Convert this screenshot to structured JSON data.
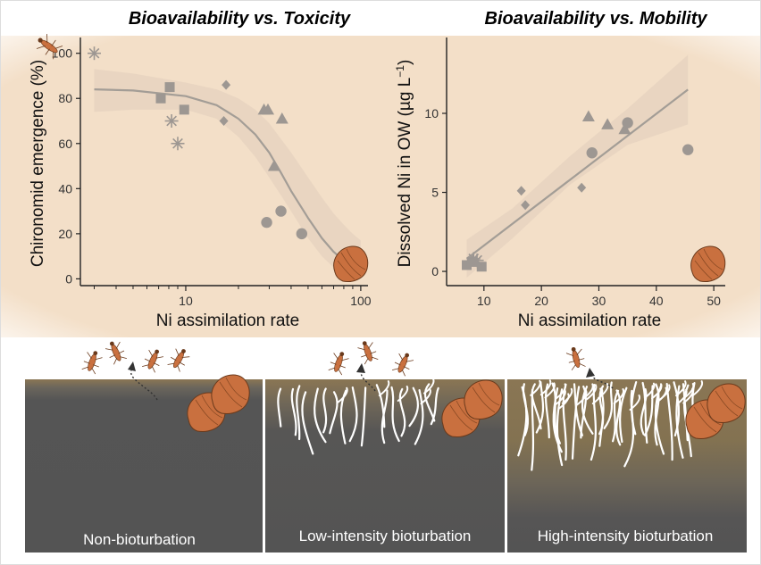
{
  "colors": {
    "panel_bg": "#f3dfc8",
    "marker": "#9d9792",
    "fit_line": "#a39d96",
    "ribbon": "#e6d3bf",
    "sediment_dark": "#545454",
    "water_brown": "#8a7654",
    "burrow": "#ffffff",
    "clam": "#c9703f",
    "insect": "#c9703f"
  },
  "chart_data": [
    {
      "type": "scatter",
      "title": "Bioavailability vs. Toxicity",
      "xlabel": "Ni assimilation rate",
      "ylabel": "Chironomid emergence (%)",
      "x_scale": "log",
      "xlim": [
        2.5,
        110
      ],
      "ylim": [
        -3,
        107
      ],
      "x_ticks": [
        10,
        100
      ],
      "y_ticks": [
        0,
        20,
        40,
        60,
        80,
        100
      ],
      "grid": false,
      "fit": "logistic decreasing with confidence band",
      "series": [
        {
          "shape": "asterisk",
          "points": [
            [
              3.0,
              100
            ],
            [
              8.3,
              70
            ],
            [
              9.0,
              60
            ]
          ]
        },
        {
          "shape": "square",
          "points": [
            [
              7.2,
              80
            ],
            [
              8.1,
              85
            ],
            [
              9.8,
              75
            ]
          ]
        },
        {
          "shape": "diamond",
          "points": [
            [
              16.5,
              70
            ],
            [
              17.0,
              86
            ]
          ]
        },
        {
          "shape": "triangle",
          "points": [
            [
              28.0,
              75
            ],
            [
              29.5,
              75
            ],
            [
              32.0,
              50
            ],
            [
              35.5,
              71
            ]
          ]
        },
        {
          "shape": "circle",
          "points": [
            [
              29.0,
              25
            ],
            [
              35.0,
              30
            ],
            [
              46.0,
              20
            ]
          ]
        }
      ],
      "fit_curve": {
        "x": [
          3.0,
          5.0,
          10,
          15,
          20,
          25,
          30,
          35,
          40,
          50,
          60,
          70,
          80,
          90,
          100
        ],
        "y": [
          84,
          83.5,
          81,
          77,
          71,
          64,
          56,
          47,
          39,
          27,
          18,
          12,
          8,
          5,
          3
        ]
      },
      "band_upper": {
        "x": [
          3.0,
          5.0,
          10,
          15,
          20,
          25,
          30,
          35,
          40,
          50,
          60,
          70,
          80,
          90,
          100
        ],
        "y": [
          93,
          91,
          87,
          84,
          80,
          75,
          69,
          62,
          56,
          45,
          36,
          29,
          24,
          20,
          17
        ]
      },
      "band_lower": {
        "x": [
          3.0,
          5.0,
          10,
          15,
          20,
          25,
          30,
          35,
          40,
          50,
          60,
          70,
          80,
          90,
          100
        ],
        "y": [
          74,
          75,
          75,
          71,
          63,
          54,
          45,
          37,
          30,
          18,
          10,
          5,
          2,
          0,
          0
        ]
      }
    },
    {
      "type": "scatter",
      "title": "Bioavailability vs. Mobility",
      "xlabel": "Ni assimilation rate",
      "ylabel": "Dissolved Ni in OW",
      "ylabel_unit": "(µg L",
      "ylabel_superscript": "−1",
      "ylabel_close": ")",
      "xlim": [
        3.5,
        52
      ],
      "ylim": [
        -0.9,
        14.8
      ],
      "x_ticks": [
        10,
        20,
        30,
        40,
        50
      ],
      "y_ticks": [
        0,
        5,
        10
      ],
      "grid": false,
      "fit": "linear with confidence band",
      "series": [
        {
          "shape": "square",
          "points": [
            [
              7.0,
              0.4
            ],
            [
              7.9,
              0.6
            ],
            [
              9.6,
              0.3
            ]
          ]
        },
        {
          "shape": "asterisk",
          "points": [
            [
              8.2,
              0.8
            ],
            [
              8.8,
              0.7
            ]
          ]
        },
        {
          "shape": "diamond",
          "points": [
            [
              16.5,
              5.1
            ],
            [
              17.2,
              4.2
            ],
            [
              27.0,
              5.3
            ]
          ]
        },
        {
          "shape": "triangle",
          "points": [
            [
              28.2,
              9.8
            ],
            [
              31.5,
              9.3
            ],
            [
              34.5,
              9.0
            ]
          ]
        },
        {
          "shape": "circle",
          "points": [
            [
              28.8,
              7.5
            ],
            [
              35.0,
              9.4
            ],
            [
              45.5,
              7.7
            ]
          ]
        }
      ],
      "fit_line": {
        "x": [
          7.0,
          45.5
        ],
        "y": [
          0.8,
          11.5
        ]
      },
      "band_upper": {
        "x": [
          7.0,
          15,
          25,
          35,
          45.5
        ],
        "y": [
          2.0,
          4.0,
          7.3,
          10.3,
          13.7
        ]
      },
      "band_lower": {
        "x": [
          7.0,
          15,
          25,
          35,
          45.5
        ],
        "y": [
          -0.4,
          2.1,
          5.5,
          8.0,
          9.3
        ]
      }
    }
  ],
  "scenes": [
    {
      "label": "Non-bioturbation",
      "burrows": 0,
      "water": 0.1
    },
    {
      "label": "Low-intensity bioturbation",
      "burrows": 18,
      "water": 0.25
    },
    {
      "label": "High-intensity bioturbation",
      "burrows": 34,
      "water": 0.55
    }
  ]
}
